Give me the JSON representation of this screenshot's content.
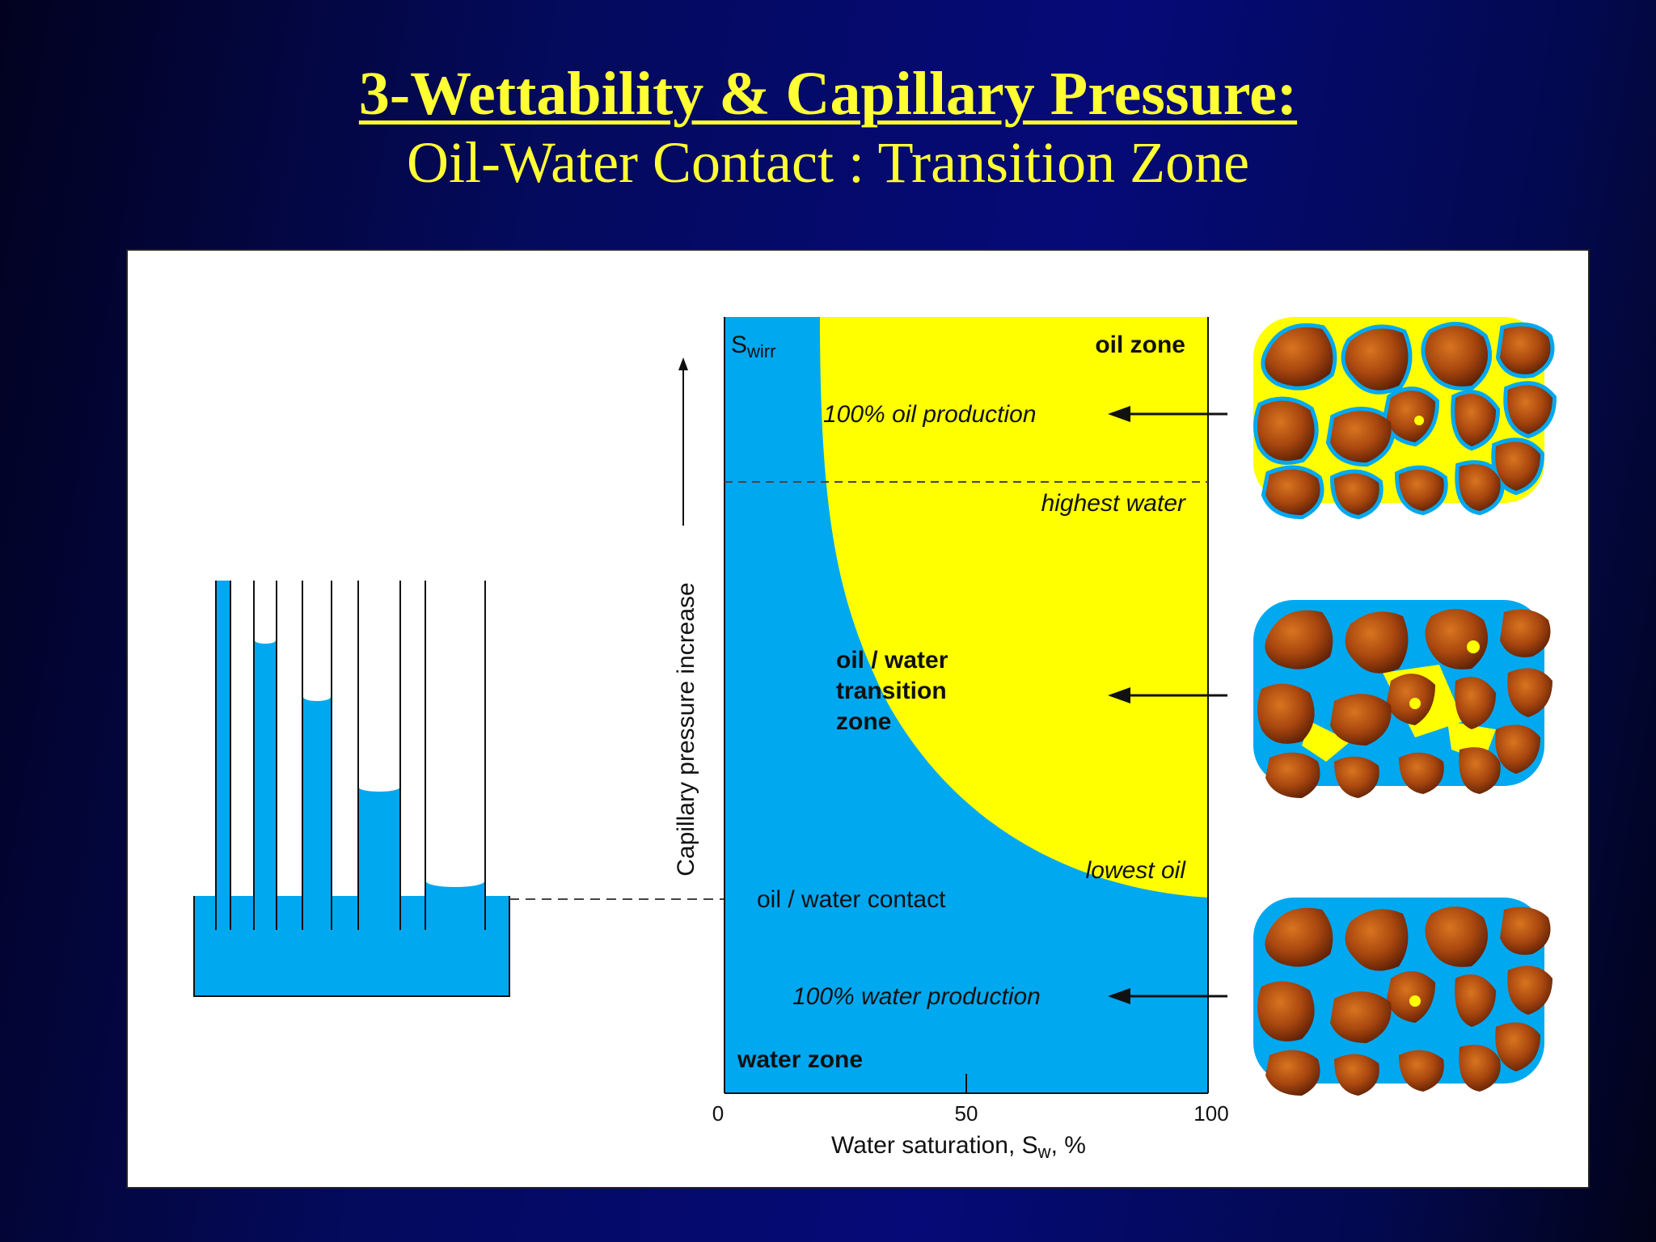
{
  "header": {
    "title": "3-Wettability & Capillary Pressure:",
    "subtitle": "Oil-Water Contact : Transition Zone"
  },
  "diagram": {
    "swirr_main": "S",
    "swirr_sub": "wirr",
    "oil_zone": "oil zone",
    "oil_production": "100% oil production",
    "highest_water": "highest water",
    "transition_line1": "oil / water",
    "transition_line2": "transition",
    "transition_line3": "zone",
    "lowest_oil": "lowest oil",
    "owc": "oil / water contact",
    "water_production": "100% water production",
    "water_zone": "water zone",
    "y_axis_label": "Capillary pressure increase",
    "x_axis_label_main": "Water saturation, S",
    "x_axis_label_sub": "w",
    "x_axis_label_unit": ", %",
    "x_ticks": [
      "0",
      "50",
      "100"
    ]
  },
  "colors": {
    "water": "#00a8f0",
    "oil": "#ffff00",
    "grain_light": "#c8601a",
    "grain_dark": "#6a2506",
    "title": "#ffff33"
  }
}
